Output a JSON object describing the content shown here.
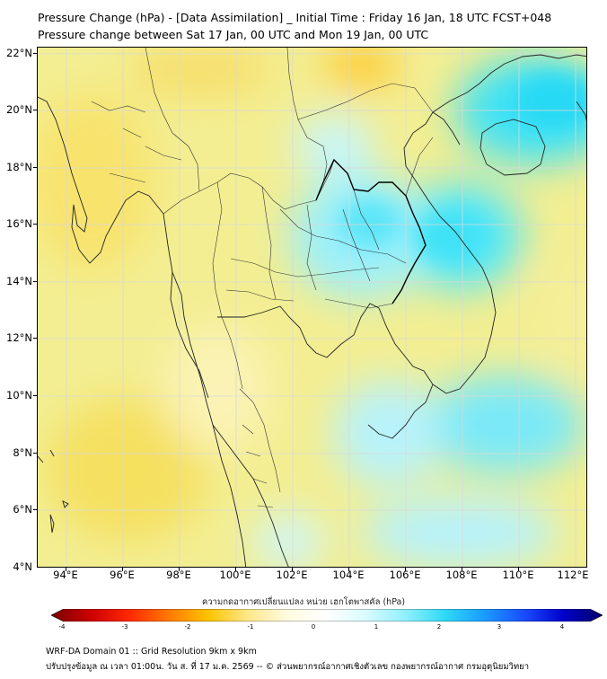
{
  "title_line1": "Pressure Change (hPa) - [Data Assimilation] _ Initial Time : Friday 16 Jan, 18 UTC FCST+048",
  "title_line2": "Pressure change between Sat 17 Jan, 00 UTC and Mon 19 Jan, 00 UTC",
  "lat_labels": [
    "22°N",
    "20°N",
    "18°N",
    "16°N",
    "14°N",
    "12°N",
    "10°N",
    "8°N",
    "6°N",
    "4°N"
  ],
  "lon_labels": [
    "94°E",
    "96°E",
    "98°E",
    "100°E",
    "102°E",
    "104°E",
    "106°E",
    "108°E",
    "110°E",
    "112°E"
  ],
  "colorbar": {
    "title": "ความกดอากาศเปลี่ยนแปลง หน่วย เฮกโตพาสคัล (hPa)",
    "tick_labels": [
      "-4",
      "-3",
      "-2",
      "-1",
      "0",
      "1",
      "2",
      "3",
      "4"
    ],
    "colors": [
      "#7a0000",
      "#cc0000",
      "#ff2a00",
      "#ff7a00",
      "#ffc400",
      "#ffe88a",
      "#fffbe0",
      "#ffffff",
      "#d9fbff",
      "#8ff0ff",
      "#2fd9f5",
      "#1a9cff",
      "#1a4dff",
      "#0000cc",
      "#000066"
    ]
  },
  "map_colors": {
    "low_change": "#f3ee92",
    "neg_strong": "#ffc92e",
    "pos_mild": "#b8f3fb",
    "pos_strong": "#3fe2f6"
  },
  "footer_line1": "WRF-DA Domain 01 :: Grid Resolution 9km x 9km",
  "footer_line2": "ปรับปรุงข้อมูล ณ เวลา 01:00น. วัน ส. ที่ 17 ม.ค. 2569 -- © ส่วนพยากรณ์อากาศเชิงตัวเลข กองพยากรณ์อากาศ กรมอุตุนิยมวิทยา"
}
